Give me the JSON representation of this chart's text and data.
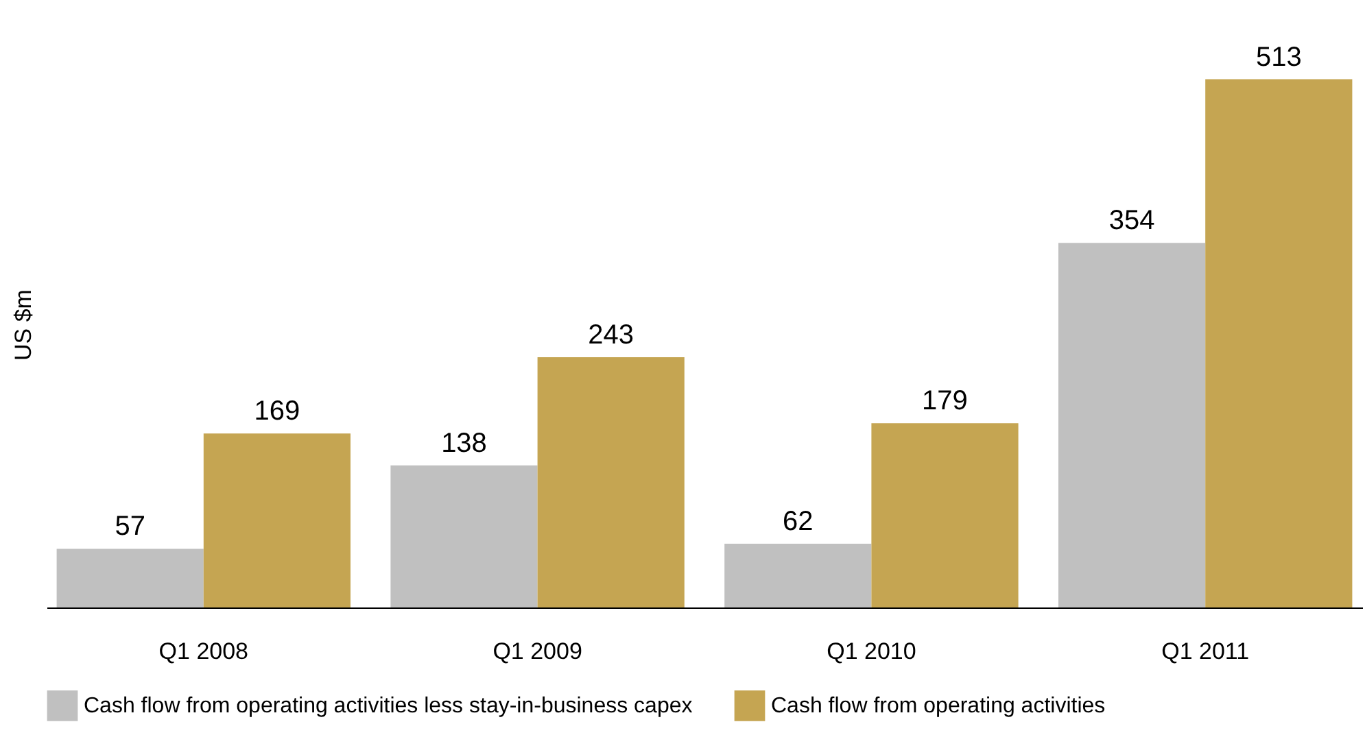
{
  "chart_data": {
    "type": "bar",
    "ylabel": "US $m",
    "categories": [
      "Q1 2008",
      "Q1 2009",
      "Q1 2010",
      "Q1 2011"
    ],
    "series": [
      {
        "name": "Cash flow from operating activities less stay-in-business capex",
        "color": "#c0c0c0",
        "values": [
          57,
          138,
          62,
          354
        ]
      },
      {
        "name": "Cash flow from operating activities",
        "color": "#c5a552",
        "values": [
          169,
          243,
          179,
          513
        ]
      }
    ],
    "data_labels": true,
    "grid": false,
    "legend": "bottom"
  }
}
